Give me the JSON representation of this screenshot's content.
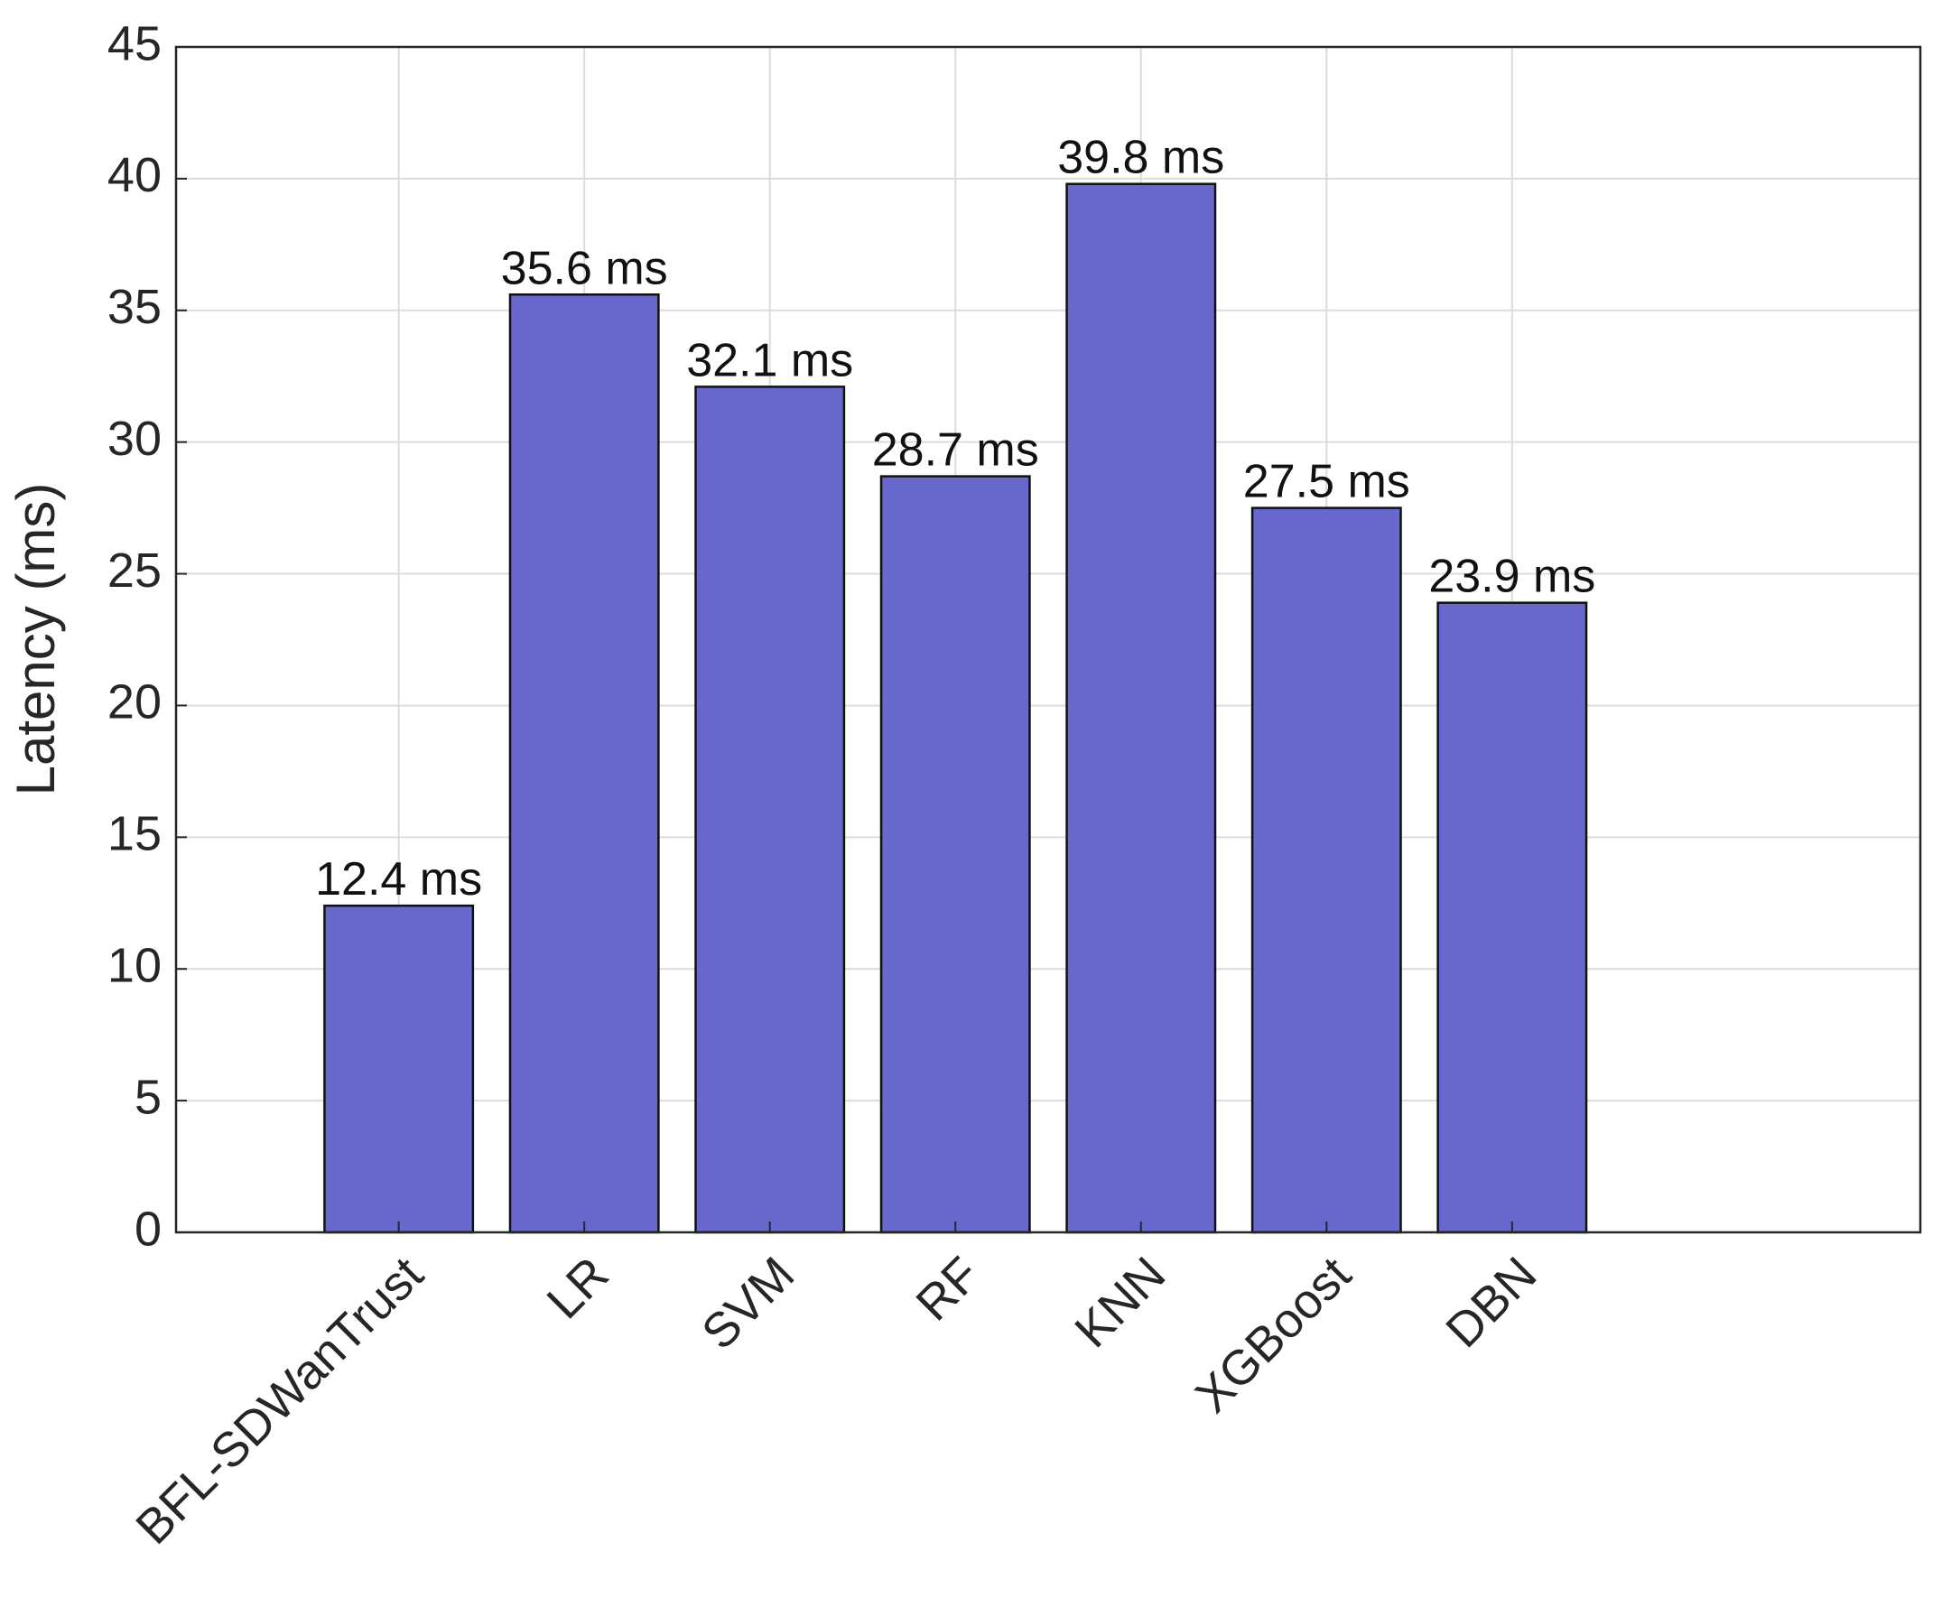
{
  "chart_data": {
    "type": "bar",
    "y_label": "Latency (ms)",
    "categories": [
      "BFL-SDWanTrust",
      "LR",
      "SVM",
      "RF",
      "KNN",
      "XGBoost",
      "DBN"
    ],
    "values": [
      12.4,
      35.6,
      32.1,
      28.7,
      39.8,
      27.5,
      23.9
    ],
    "value_labels": [
      "12.4 ms",
      "35.6 ms",
      "32.1 ms",
      "28.7 ms",
      "39.8 ms",
      "27.5 ms",
      "23.9 ms"
    ],
    "color": "#6868cc",
    "ylim": [
      0,
      45
    ],
    "yticks": [
      0,
      5,
      10,
      15,
      20,
      25,
      30,
      35,
      40,
      45
    ],
    "grid": true
  }
}
